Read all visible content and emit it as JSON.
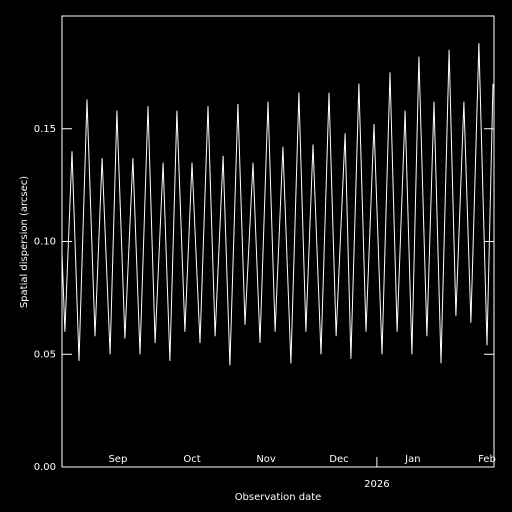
{
  "chart_data": {
    "type": "line",
    "x_label": "Observation date",
    "y_label": "Spatial dispersion (arcsec)",
    "color": "#ffffff",
    "xlim": [
      0,
      177.8
    ],
    "xticks": [
      {
        "value": 23.0,
        "label": "Sep"
      },
      {
        "value": 53.5,
        "label": "Oct"
      },
      {
        "value": 84.0,
        "label": "Nov"
      },
      {
        "value": 114.0,
        "label": "Dec"
      },
      {
        "value": 144.4,
        "label": "Jan"
      },
      {
        "value": 174.9,
        "label": "Feb"
      }
    ],
    "year_ticks": [
      {
        "value": 129.6,
        "label": "2026"
      }
    ],
    "ylim": [
      0,
      0.2
    ],
    "yticks": [
      {
        "value": 0,
        "label": "0.00"
      },
      {
        "value": 0.05,
        "label": "0.05"
      },
      {
        "value": 0.1,
        "label": "0.10"
      },
      {
        "value": 0.15,
        "label": "0.15"
      }
    ],
    "x": [
      0,
      1.2,
      4.1,
      7.0,
      10.3,
      13.6,
      16.5,
      19.8,
      22.6,
      25.9,
      29.2,
      32.1,
      35.4,
      38.3,
      41.6,
      44.4,
      47.3,
      50.6,
      53.5,
      56.8,
      60.1,
      63.0,
      66.3,
      69.1,
      72.4,
      75.3,
      78.6,
      81.5,
      84.8,
      87.7,
      90.9,
      94.2,
      97.5,
      100.4,
      103.3,
      106.6,
      109.9,
      112.8,
      116.5,
      118.9,
      122.2,
      125.1,
      128.4,
      131.7,
      135.0,
      137.9,
      141.2,
      144.0,
      146.9,
      150.2,
      153.1,
      156.0,
      159.3,
      162.1,
      165.4,
      168.3,
      171.6,
      174.9,
      177.4
    ],
    "values": [
      0.095,
      0.06,
      0.14,
      0.047,
      0.163,
      0.058,
      0.137,
      0.05,
      0.158,
      0.057,
      0.137,
      0.05,
      0.16,
      0.055,
      0.135,
      0.047,
      0.158,
      0.06,
      0.135,
      0.055,
      0.16,
      0.058,
      0.138,
      0.045,
      0.161,
      0.063,
      0.135,
      0.055,
      0.162,
      0.06,
      0.142,
      0.046,
      0.166,
      0.06,
      0.143,
      0.05,
      0.166,
      0.058,
      0.148,
      0.048,
      0.17,
      0.06,
      0.152,
      0.05,
      0.175,
      0.06,
      0.158,
      0.05,
      0.182,
      0.058,
      0.162,
      0.046,
      0.185,
      0.067,
      0.162,
      0.064,
      0.188,
      0.054,
      0.17
    ]
  }
}
